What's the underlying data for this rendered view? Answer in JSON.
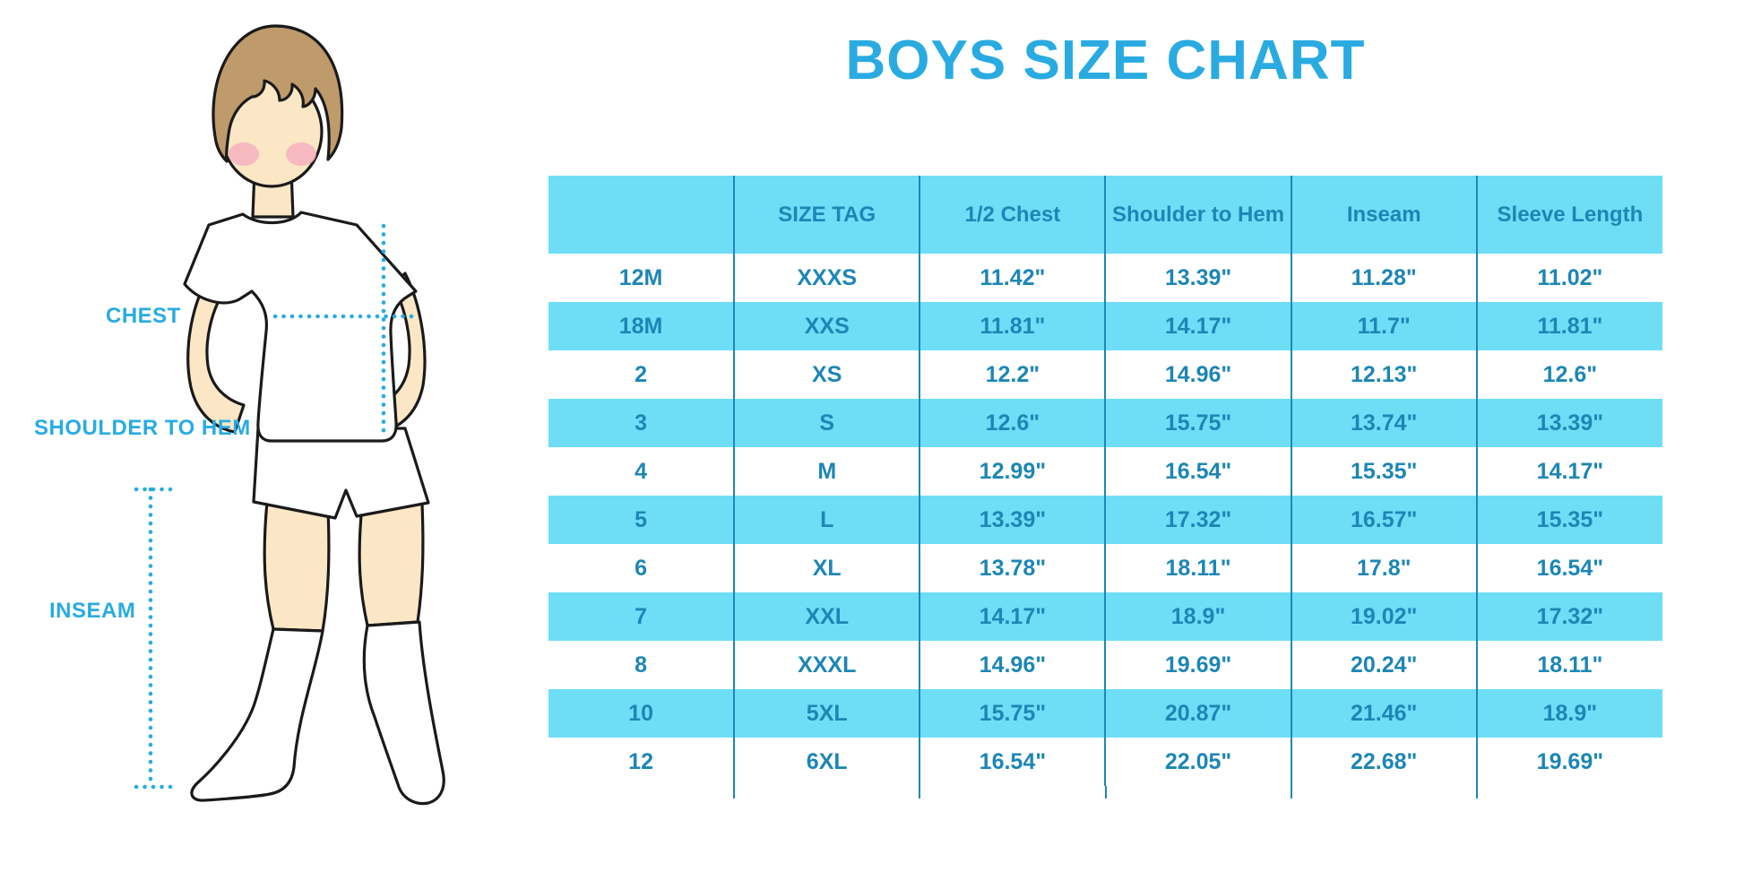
{
  "title": "BOYS SIZE CHART",
  "figure_labels": {
    "chest": "CHEST",
    "shoulder_to_hem": "SHOULDER TO HEM",
    "inseam": "INSEAM"
  },
  "illustration": "boy-in-white-tshirt-shorts-and-knee-socks-with-dotted-measurement-guides",
  "colors": {
    "accent_blue": "#29ABE2",
    "row_blue": "#6EDEF7",
    "table_text_blue": "#1D86B5",
    "divider_blue": "#1F87B4",
    "skin": "#FBE7C5",
    "hair": "#BF9A6B",
    "blush": "#F5AEBE",
    "outline": "#1A1A1A"
  },
  "chart_data": {
    "type": "table",
    "title": "BOYS SIZE CHART",
    "units": "inches",
    "striped_rows": true,
    "columns": [
      "",
      "SIZE TAG",
      "1/2 Chest",
      "Shoulder to Hem",
      "Inseam",
      "Sleeve Length"
    ],
    "rows": [
      [
        "12M",
        "XXXS",
        "11.42\"",
        "13.39\"",
        "11.28\"",
        "11.02\""
      ],
      [
        "18M",
        "XXS",
        "11.81\"",
        "14.17\"",
        "11.7\"",
        "11.81\""
      ],
      [
        "2",
        "XS",
        "12.2\"",
        "14.96\"",
        "12.13\"",
        "12.6\""
      ],
      [
        "3",
        "S",
        "12.6\"",
        "15.75\"",
        "13.74\"",
        "13.39\""
      ],
      [
        "4",
        "M",
        "12.99\"",
        "16.54\"",
        "15.35\"",
        "14.17\""
      ],
      [
        "5",
        "L",
        "13.39\"",
        "17.32\"",
        "16.57\"",
        "15.35\""
      ],
      [
        "6",
        "XL",
        "13.78\"",
        "18.11\"",
        "17.8\"",
        "16.54\""
      ],
      [
        "7",
        "XXL",
        "14.17\"",
        "18.9\"",
        "19.02\"",
        "17.32\""
      ],
      [
        "8",
        "XXXL",
        "14.96\"",
        "19.69\"",
        "20.24\"",
        "18.11\""
      ],
      [
        "10",
        "5XL",
        "15.75\"",
        "20.87\"",
        "21.46\"",
        "18.9\""
      ],
      [
        "12",
        "6XL",
        "16.54\"",
        "22.05\"",
        "22.68\"",
        "19.69\""
      ]
    ]
  }
}
